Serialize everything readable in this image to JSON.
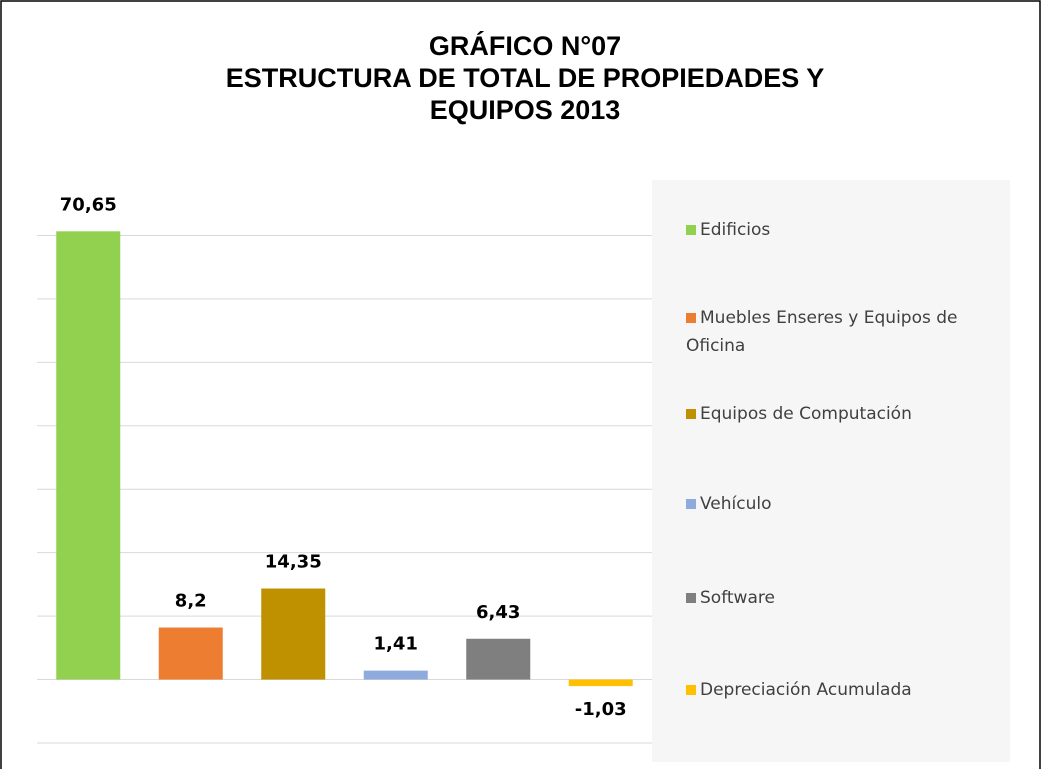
{
  "chart_data": {
    "type": "bar",
    "title": [
      "GRÁFICO N°07",
      "ESTRUCTURA DE TOTAL DE  PROPIEDADES Y",
      "EQUIPOS 2013"
    ],
    "categories": [
      "Edificios",
      "Muebles Enseres y Equipos de Oficina",
      "Equipos de Computación",
      "Vehículo",
      "Software",
      "Depreciación Acumulada"
    ],
    "values": [
      70.65,
      8.2,
      14.35,
      1.41,
      6.43,
      -1.03
    ],
    "value_labels": [
      "70,65",
      "8,2",
      "14,35",
      "1,41",
      "6,43",
      "-1,03"
    ],
    "colors": [
      "#92d050",
      "#ed7d31",
      "#bf9000",
      "#8faadc",
      "#7f7f7f",
      "#ffc000"
    ],
    "ylim": [
      -10,
      80
    ],
    "yticks": [
      -10,
      0,
      10,
      20,
      30,
      40,
      50,
      60,
      70
    ],
    "grid": true,
    "legend": "right"
  }
}
